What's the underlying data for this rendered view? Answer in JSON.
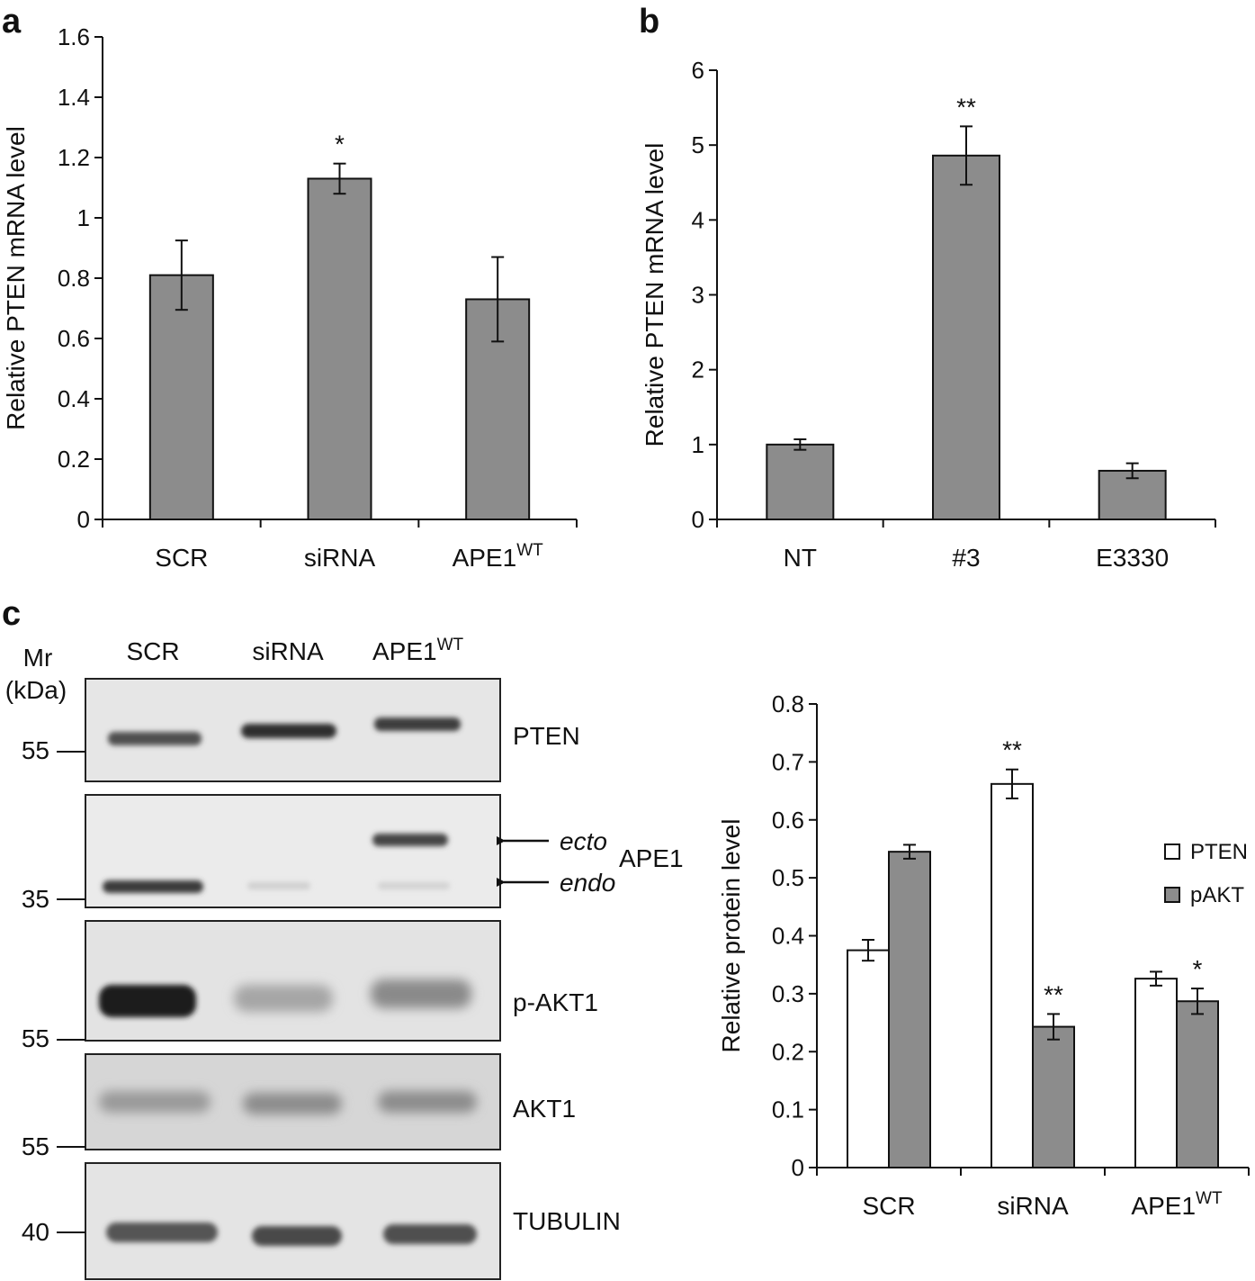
{
  "panels": {
    "a": {
      "letter": "a"
    },
    "b": {
      "letter": "b"
    },
    "c": {
      "letter": "c"
    }
  },
  "chart_data": [
    {
      "id": "a",
      "type": "bar",
      "categories": [
        "SCR",
        "siRNA",
        "APE1"
      ],
      "category_superscripts": [
        "",
        "",
        "WT"
      ],
      "values": [
        0.81,
        1.13,
        0.73
      ],
      "errors": [
        0.115,
        0.05,
        0.14
      ],
      "significance": [
        "",
        "*",
        ""
      ],
      "ylabel": "Relative PTEN mRNA level",
      "ylim": [
        0,
        1.6
      ],
      "yticks": [
        "0",
        "0.2",
        "0.4",
        "0.6",
        "0.8",
        "1",
        "1.2",
        "1.4",
        "1.6"
      ],
      "bar_color": "#8c8c8c",
      "grid": false
    },
    {
      "id": "b",
      "type": "bar",
      "categories": [
        "NT",
        "#3",
        "E3330"
      ],
      "category_superscripts": [
        "",
        "",
        ""
      ],
      "values": [
        1.0,
        4.86,
        0.65
      ],
      "errors": [
        0.07,
        0.39,
        0.1
      ],
      "significance": [
        "",
        "**",
        ""
      ],
      "ylabel": "Relative PTEN mRNA level",
      "ylim": [
        0,
        6
      ],
      "yticks": [
        "0",
        "1",
        "2",
        "3",
        "4",
        "5",
        "6"
      ],
      "bar_color": "#8c8c8c",
      "grid": false
    },
    {
      "id": "c-chart",
      "type": "bar",
      "categories": [
        "SCR",
        "siRNA",
        "APE1"
      ],
      "category_superscripts": [
        "",
        "",
        "WT"
      ],
      "series": [
        {
          "name": "PTEN",
          "values": [
            0.375,
            0.662,
            0.326
          ],
          "errors": [
            0.018,
            0.025,
            0.012
          ],
          "significance": [
            "",
            "**",
            ""
          ],
          "color": "#ffffff"
        },
        {
          "name": "pAKT",
          "values": [
            0.545,
            0.243,
            0.287
          ],
          "errors": [
            0.012,
            0.022,
            0.022
          ],
          "significance": [
            "",
            "**",
            "*"
          ],
          "color": "#8c8c8c"
        }
      ],
      "ylabel": "Relative protein level",
      "ylim": [
        0,
        0.8
      ],
      "yticks": [
        "0",
        "0.1",
        "0.2",
        "0.3",
        "0.4",
        "0.5",
        "0.6",
        "0.7",
        "0.8"
      ],
      "legend_position": "right",
      "grid": false
    }
  ],
  "blot": {
    "lane_labels": [
      "SCR",
      "siRNA",
      "APE1"
    ],
    "lane_superscripts": [
      "",
      "",
      "WT"
    ],
    "mr_label_line1": "Mr",
    "mr_label_line2": "(kDa)",
    "markers": [
      "55",
      "35",
      "55",
      "55",
      "40"
    ],
    "panel_labels": [
      "PTEN",
      "APE1",
      "p-AKT1",
      "AKT1",
      "TUBULIN"
    ],
    "ecto_label": "ecto",
    "endo_label": "endo"
  }
}
